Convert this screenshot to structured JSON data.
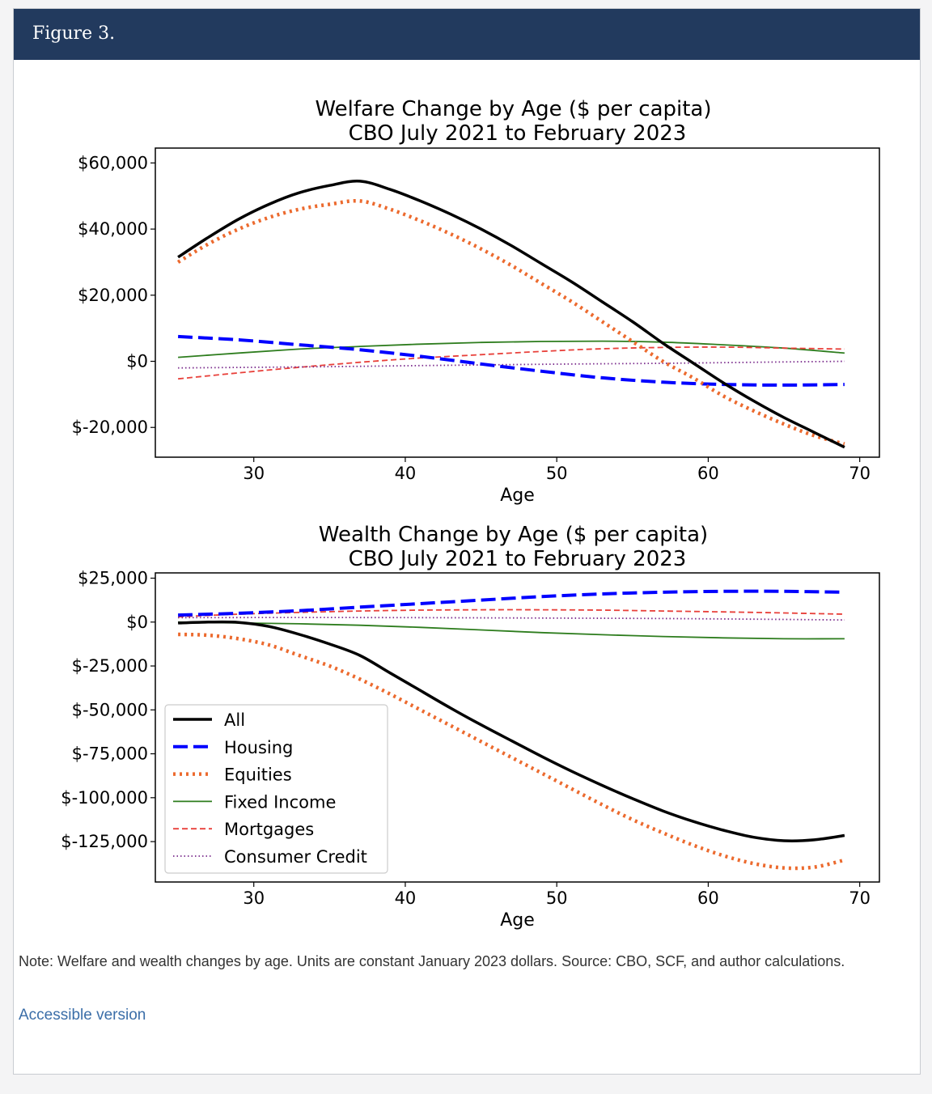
{
  "figure": {
    "title": "Figure 3.",
    "note": "Note: Welfare and wealth changes by age. Units are constant January 2023 dollars. Source: CBO, SCF, and author calculations.",
    "accessible_link": "Accessible version"
  },
  "colors": {
    "header_bg": "#223a5e",
    "All": "#000000",
    "Housing": "#0000ff",
    "Equities": "#ec6a2e",
    "Fixed Income": "#2e7d1e",
    "Mortgages": "#e8403a",
    "Consumer Credit": "#7a2b8c",
    "link": "#3b6ea8"
  },
  "chart_data": [
    {
      "type": "line",
      "title_lines": [
        "Welfare Change by Age ($ per capita)",
        "CBO July 2021 to February 2023"
      ],
      "xlabel": "Age",
      "ylabel": "",
      "xlim": [
        23.5,
        71.3
      ],
      "ylim": [
        -29000,
        64500
      ],
      "xticks": [
        30,
        40,
        50,
        60,
        70
      ],
      "yticks": [
        -20000,
        0,
        20000,
        40000,
        60000
      ],
      "ytick_labels": [
        "$-20,000",
        "$0",
        "$20,000",
        "$40,000",
        "$60,000"
      ],
      "legend": null,
      "grid": false,
      "series": [
        {
          "name": "All",
          "style": "solid-thick",
          "points": [
            [
              25,
              31500
            ],
            [
              27,
              37500
            ],
            [
              29,
              43000
            ],
            [
              31,
              47500
            ],
            [
              33,
              51000
            ],
            [
              35,
              53200
            ],
            [
              37,
              54500
            ],
            [
              39,
              52000
            ],
            [
              41,
              48500
            ],
            [
              43,
              44500
            ],
            [
              45,
              40000
            ],
            [
              47,
              35000
            ],
            [
              49,
              29500
            ],
            [
              51,
              24000
            ],
            [
              53,
              18000
            ],
            [
              55,
              12000
            ],
            [
              57,
              5500
            ],
            [
              59,
              -500
            ],
            [
              61,
              -6500
            ],
            [
              63,
              -12000
            ],
            [
              65,
              -17000
            ],
            [
              67,
              -21500
            ],
            [
              69,
              -26000
            ]
          ]
        },
        {
          "name": "Housing",
          "style": "dashed-thick",
          "points": [
            [
              25,
              7500
            ],
            [
              29,
              6500
            ],
            [
              33,
              5000
            ],
            [
              37,
              3500
            ],
            [
              41,
              1500
            ],
            [
              45,
              -800
            ],
            [
              49,
              -3000
            ],
            [
              53,
              -5000
            ],
            [
              57,
              -6300
            ],
            [
              61,
              -7000
            ],
            [
              65,
              -7200
            ],
            [
              69,
              -7000
            ]
          ]
        },
        {
          "name": "Equities",
          "style": "dotted-thick",
          "points": [
            [
              25,
              30000
            ],
            [
              27,
              35500
            ],
            [
              29,
              40000
            ],
            [
              31,
              43500
            ],
            [
              33,
              46000
            ],
            [
              35,
              47500
            ],
            [
              37,
              48500
            ],
            [
              39,
              46000
            ],
            [
              41,
              42500
            ],
            [
              43,
              38500
            ],
            [
              45,
              34000
            ],
            [
              47,
              29000
            ],
            [
              49,
              23500
            ],
            [
              51,
              18000
            ],
            [
              53,
              12000
            ],
            [
              55,
              6000
            ],
            [
              57,
              0
            ],
            [
              59,
              -5000
            ],
            [
              61,
              -10500
            ],
            [
              63,
              -15000
            ],
            [
              65,
              -19000
            ],
            [
              67,
              -22500
            ],
            [
              69,
              -25000
            ]
          ]
        },
        {
          "name": "Fixed Income",
          "style": "solid-thin",
          "points": [
            [
              25,
              1200
            ],
            [
              29,
              2500
            ],
            [
              33,
              3700
            ],
            [
              37,
              4500
            ],
            [
              41,
              5200
            ],
            [
              45,
              5700
            ],
            [
              49,
              6000
            ],
            [
              53,
              6100
            ],
            [
              57,
              5800
            ],
            [
              61,
              5000
            ],
            [
              65,
              4000
            ],
            [
              69,
              2500
            ]
          ]
        },
        {
          "name": "Mortgages",
          "style": "dashed-thin",
          "points": [
            [
              25,
              -5300
            ],
            [
              29,
              -3500
            ],
            [
              33,
              -1800
            ],
            [
              37,
              -300
            ],
            [
              41,
              1000
            ],
            [
              45,
              2000
            ],
            [
              49,
              3000
            ],
            [
              53,
              3800
            ],
            [
              57,
              4200
            ],
            [
              61,
              4300
            ],
            [
              65,
              4000
            ],
            [
              69,
              3700
            ]
          ]
        },
        {
          "name": "Consumer Credit",
          "style": "dotted-thin",
          "points": [
            [
              25,
              -2000
            ],
            [
              33,
              -1700
            ],
            [
              41,
              -1300
            ],
            [
              49,
              -900
            ],
            [
              57,
              -600
            ],
            [
              65,
              -200
            ],
            [
              69,
              0
            ]
          ]
        }
      ]
    },
    {
      "type": "line",
      "title_lines": [
        "Wealth Change by Age ($ per capita)",
        "CBO July 2021 to February 2023"
      ],
      "xlabel": "Age",
      "ylabel": "",
      "xlim": [
        23.5,
        71.3
      ],
      "ylim": [
        -148000,
        28000
      ],
      "xticks": [
        30,
        40,
        50,
        60,
        70
      ],
      "yticks": [
        -125000,
        -100000,
        -75000,
        -50000,
        -25000,
        0,
        25000
      ],
      "ytick_labels": [
        "$-125,000",
        "$-100,000",
        "$-75,000",
        "$-50,000",
        "$-25,000",
        "$0",
        "$25,000"
      ],
      "legend": "lower-left",
      "grid": false,
      "series": [
        {
          "name": "All",
          "style": "solid-thick",
          "points": [
            [
              25,
              -500
            ],
            [
              27,
              0
            ],
            [
              29,
              -200
            ],
            [
              31,
              -2500
            ],
            [
              33,
              -7000
            ],
            [
              35,
              -12500
            ],
            [
              37,
              -19000
            ],
            [
              39,
              -29000
            ],
            [
              41,
              -39000
            ],
            [
              43,
              -49000
            ],
            [
              45,
              -58500
            ],
            [
              47,
              -67500
            ],
            [
              49,
              -76500
            ],
            [
              51,
              -85000
            ],
            [
              53,
              -93000
            ],
            [
              55,
              -100500
            ],
            [
              57,
              -107500
            ],
            [
              59,
              -113500
            ],
            [
              61,
              -118500
            ],
            [
              63,
              -122500
            ],
            [
              65,
              -124500
            ],
            [
              67,
              -124000
            ],
            [
              69,
              -121500
            ]
          ]
        },
        {
          "name": "Housing",
          "style": "dashed-thick",
          "points": [
            [
              25,
              4000
            ],
            [
              29,
              5000
            ],
            [
              33,
              6500
            ],
            [
              37,
              8500
            ],
            [
              41,
              10500
            ],
            [
              45,
              12500
            ],
            [
              49,
              14500
            ],
            [
              53,
              16000
            ],
            [
              57,
              17000
            ],
            [
              61,
              17500
            ],
            [
              65,
              17500
            ],
            [
              69,
              17000
            ]
          ]
        },
        {
          "name": "Equities",
          "style": "dotted-thick",
          "points": [
            [
              25,
              -7000
            ],
            [
              27,
              -7500
            ],
            [
              29,
              -9500
            ],
            [
              31,
              -13000
            ],
            [
              33,
              -19000
            ],
            [
              35,
              -25000
            ],
            [
              37,
              -32500
            ],
            [
              39,
              -41000
            ],
            [
              41,
              -50000
            ],
            [
              43,
              -59000
            ],
            [
              45,
              -68000
            ],
            [
              47,
              -77000
            ],
            [
              49,
              -86000
            ],
            [
              51,
              -95000
            ],
            [
              53,
              -104000
            ],
            [
              55,
              -112500
            ],
            [
              57,
              -120000
            ],
            [
              59,
              -127000
            ],
            [
              61,
              -133000
            ],
            [
              63,
              -137500
            ],
            [
              65,
              -140000
            ],
            [
              67,
              -139500
            ],
            [
              69,
              -135500
            ]
          ]
        },
        {
          "name": "Fixed Income",
          "style": "solid-thin",
          "points": [
            [
              25,
              0
            ],
            [
              29,
              -500
            ],
            [
              33,
              -1000
            ],
            [
              37,
              -1800
            ],
            [
              41,
              -3000
            ],
            [
              45,
              -4500
            ],
            [
              49,
              -6000
            ],
            [
              53,
              -7200
            ],
            [
              57,
              -8200
            ],
            [
              61,
              -9000
            ],
            [
              65,
              -9500
            ],
            [
              69,
              -9500
            ]
          ]
        },
        {
          "name": "Mortgages",
          "style": "dashed-thin",
          "points": [
            [
              25,
              3000
            ],
            [
              29,
              4500
            ],
            [
              33,
              5500
            ],
            [
              37,
              6300
            ],
            [
              41,
              6800
            ],
            [
              45,
              7000
            ],
            [
              49,
              7000
            ],
            [
              53,
              6800
            ],
            [
              57,
              6300
            ],
            [
              61,
              5800
            ],
            [
              65,
              5200
            ],
            [
              69,
              4500
            ]
          ]
        },
        {
          "name": "Consumer Credit",
          "style": "dotted-thin",
          "points": [
            [
              25,
              2500
            ],
            [
              33,
              2600
            ],
            [
              41,
              2500
            ],
            [
              49,
              2300
            ],
            [
              57,
              2000
            ],
            [
              65,
              1500
            ],
            [
              69,
              1200
            ]
          ]
        }
      ]
    }
  ]
}
